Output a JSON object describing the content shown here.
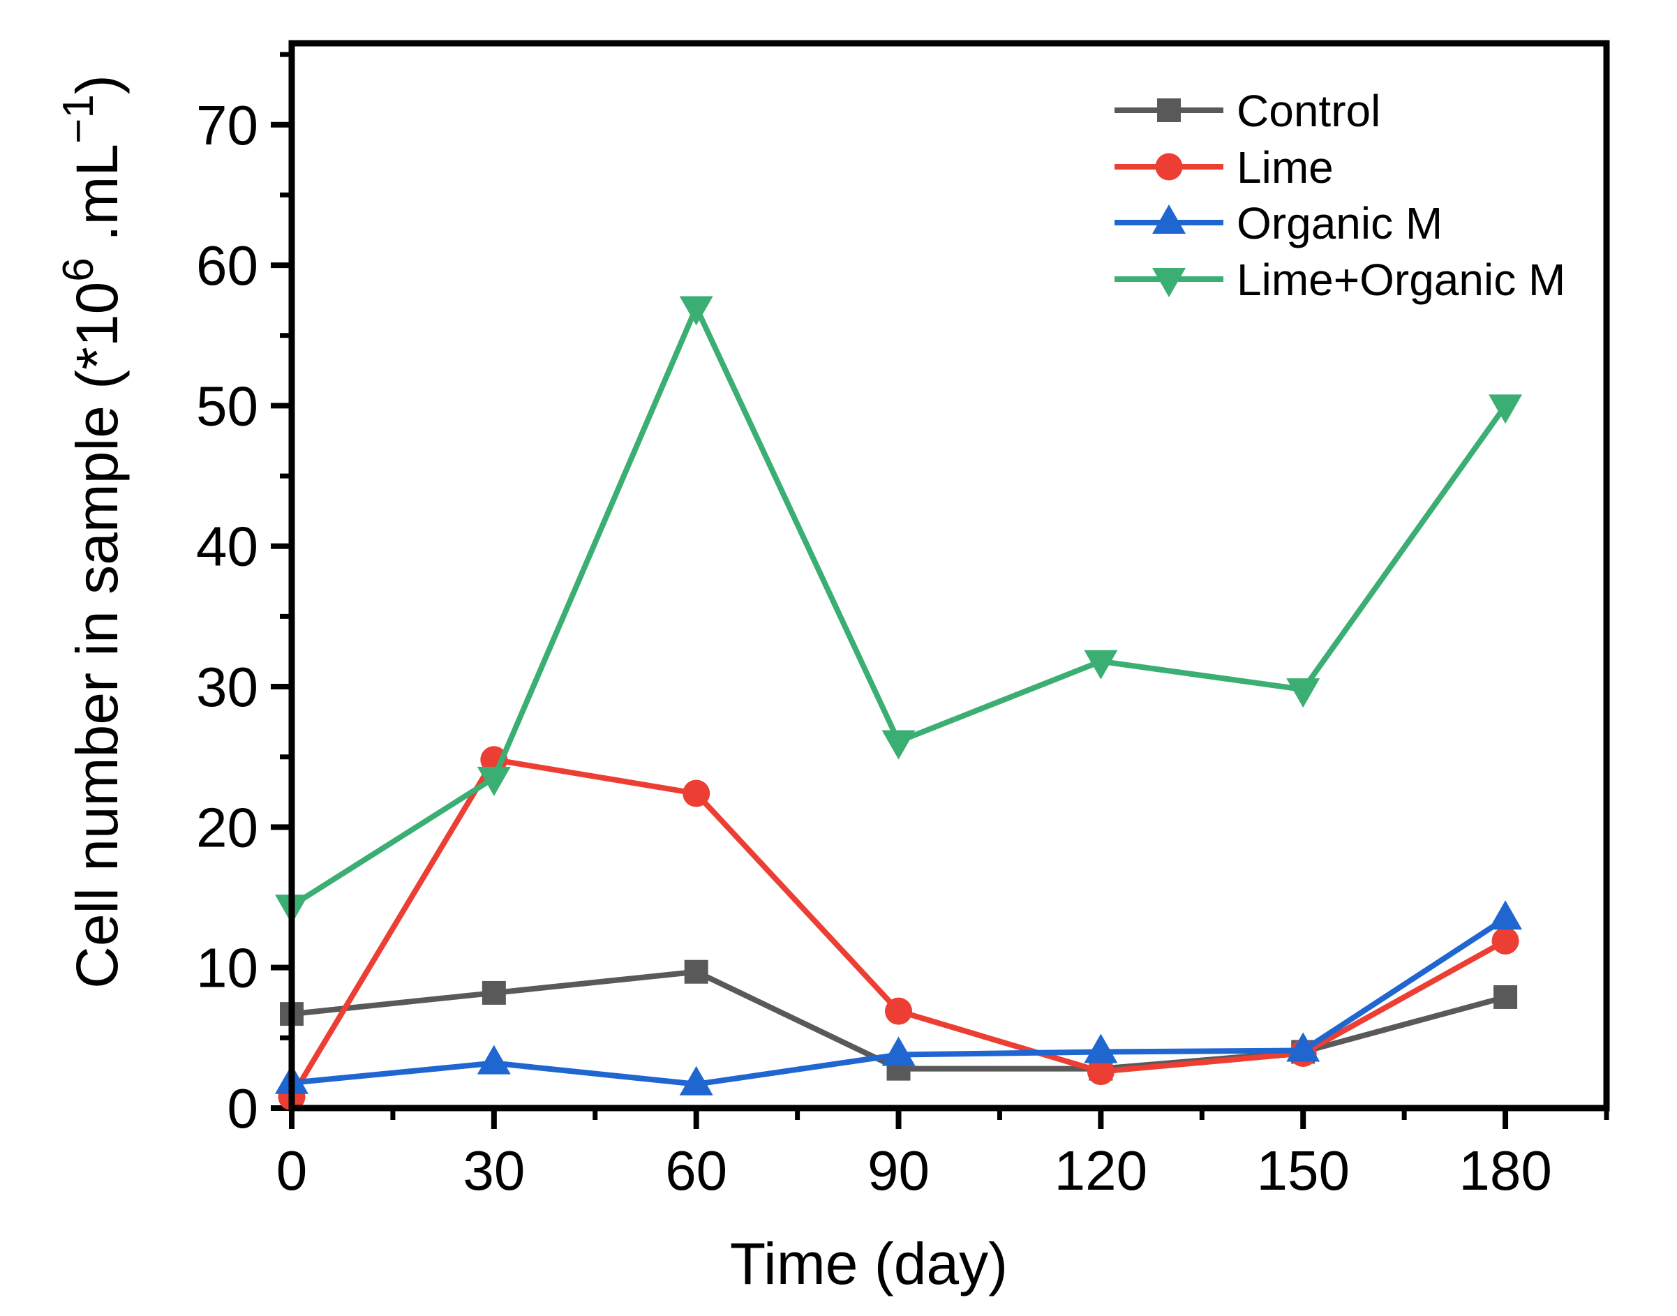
{
  "chart_data": {
    "type": "line",
    "title": "",
    "xlabel": "Time (day)",
    "ylabel": "Cell number in sample (*10⁶ .mL⁻¹)",
    "ylabel_parts": [
      {
        "text": "Cell number in sample (*10",
        "sup": false
      },
      {
        "text": "6",
        "sup": true
      },
      {
        "text": " .mL",
        "sup": false
      },
      {
        "text": "−1",
        "sup": true
      },
      {
        "text": ")",
        "sup": false
      }
    ],
    "x": [
      0,
      30,
      60,
      90,
      120,
      150,
      180
    ],
    "x_tick_labels": [
      "0",
      "30",
      "60",
      "90",
      "120",
      "150",
      "180"
    ],
    "x_ticks_minor": [
      15,
      45,
      75,
      105,
      135,
      165,
      195
    ],
    "y_ticks_major": [
      0,
      10,
      20,
      30,
      40,
      50,
      60,
      70
    ],
    "y_tick_labels": [
      "0",
      "10",
      "20",
      "30",
      "40",
      "50",
      "60",
      "70"
    ],
    "y_ticks_minor": [
      5,
      15,
      25,
      35,
      45,
      55,
      65,
      75
    ],
    "xlim": [
      0,
      195
    ],
    "ylim": [
      0,
      75.8
    ],
    "grid": false,
    "legend_position": "top-right-inside",
    "axis_color": "#000000",
    "series": [
      {
        "name": "Control",
        "color": "#595959",
        "marker": "square",
        "values": [
          6.7,
          8.2,
          9.7,
          2.8,
          2.8,
          4.0,
          7.9
        ]
      },
      {
        "name": "Lime",
        "color": "#EC3E33",
        "marker": "circle",
        "values": [
          0.8,
          24.8,
          22.4,
          6.9,
          2.6,
          3.9,
          11.9
        ]
      },
      {
        "name": "Organic M",
        "color": "#1F66D0",
        "marker": "triangle-up",
        "values": [
          1.8,
          3.2,
          1.7,
          3.8,
          4.0,
          4.1,
          13.5
        ]
      },
      {
        "name": "Lime+Organic M",
        "color": "#3BAE73",
        "marker": "triangle-down",
        "values": [
          14.4,
          23.5,
          57.0,
          26.1,
          31.8,
          29.8,
          50.0
        ]
      }
    ]
  }
}
